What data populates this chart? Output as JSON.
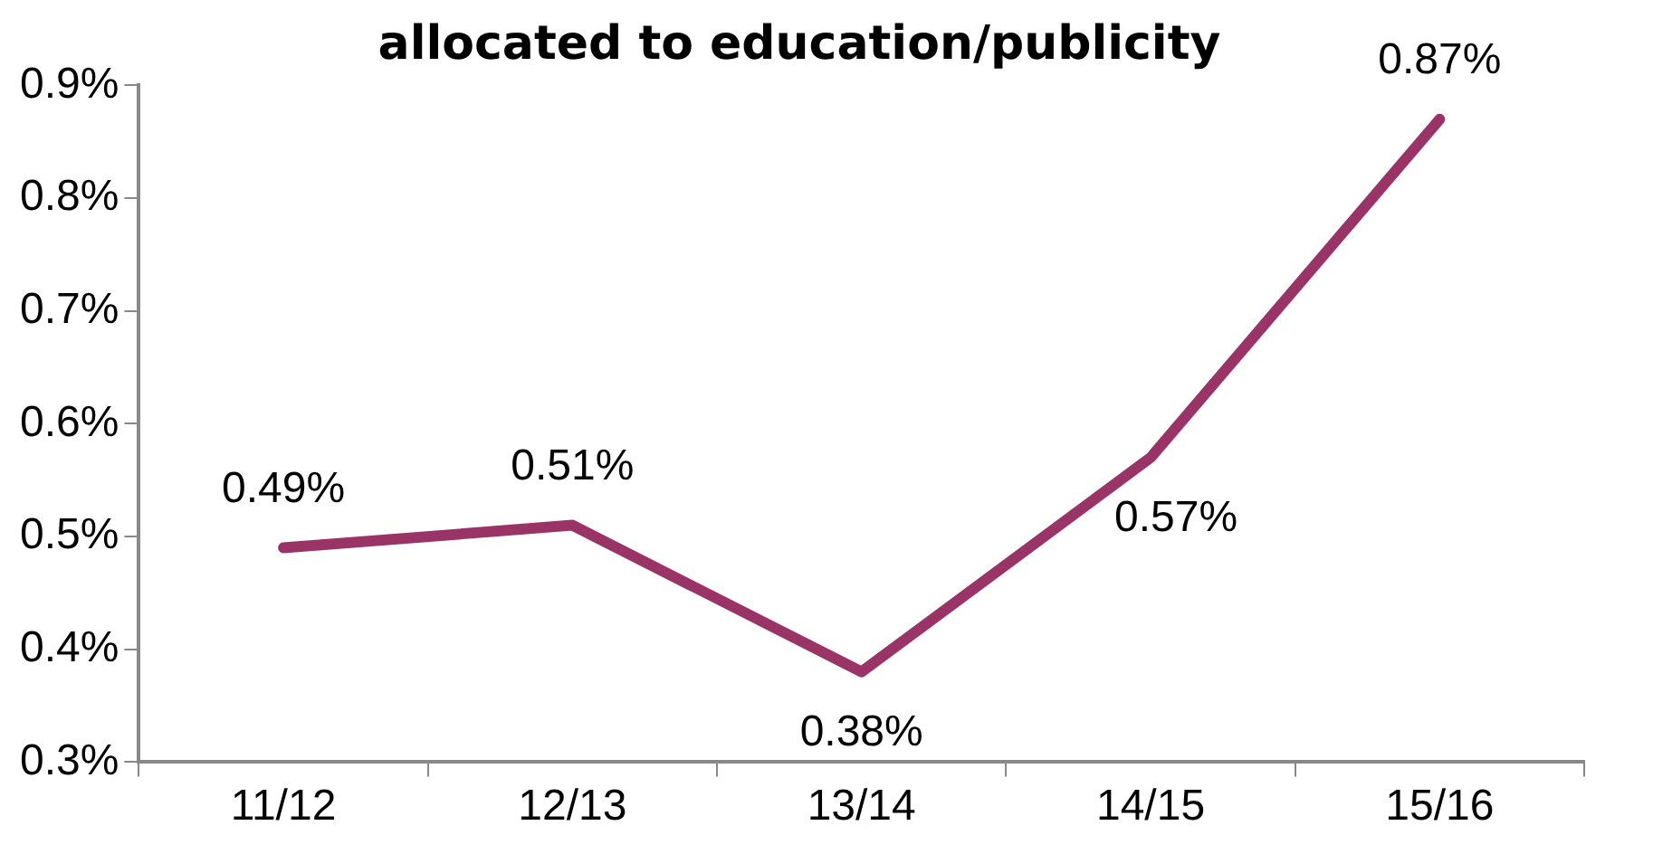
{
  "chart_data": {
    "type": "line",
    "title": "allocated to education/publicity",
    "categories": [
      "11/12",
      "12/13",
      "13/14",
      "14/15",
      "15/16"
    ],
    "series": [
      {
        "color": "#9b3466",
        "values": [
          0.49,
          0.51,
          0.38,
          0.57,
          0.87
        ],
        "value_labels": [
          "0.49%",
          "0.51%",
          "0.38%",
          "0.57%",
          "0.87%"
        ]
      }
    ],
    "ylim": [
      0.3,
      0.9
    ],
    "yticks": [
      {
        "value": 0.3,
        "label": "0.3%"
      },
      {
        "value": 0.4,
        "label": "0.4%"
      },
      {
        "value": 0.5,
        "label": "0.5%"
      },
      {
        "value": 0.6,
        "label": "0.6%"
      },
      {
        "value": 0.7,
        "label": "0.7%"
      },
      {
        "value": 0.8,
        "label": "0.8%"
      },
      {
        "value": 0.9,
        "label": "0.9%"
      }
    ],
    "grid": false,
    "legend": false,
    "marker": "none",
    "line_style": "solid"
  }
}
